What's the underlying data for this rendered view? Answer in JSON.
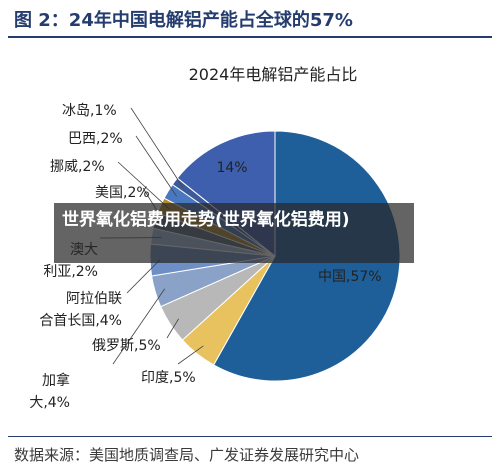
{
  "figure": {
    "title": "图 2：24年中国电解铝产能占全球的57%",
    "source": "数据来源：美国地质调查局、广发证券发展研究中心"
  },
  "overlay": {
    "text": "世界氧化铝费用走势(世界氧化铝费用)"
  },
  "chart_data": {
    "type": "pie",
    "title": "2024年电解铝产能占比",
    "slices": [
      {
        "label": "中国,57%",
        "value": 57,
        "color": "#1f5f99"
      },
      {
        "label": "印度,5%",
        "value": 5,
        "color": "#e8c25e"
      },
      {
        "label": "俄罗斯,5%",
        "value": 5,
        "color": "#b8b8b8"
      },
      {
        "label": "加拿大,4%",
        "value": 4,
        "color": "#8aa2c8"
      },
      {
        "label": "阿拉伯联合首长国,4%",
        "value": 4,
        "color": "#6e8fc6"
      },
      {
        "label": "澳大利亚,2%",
        "value": 2,
        "color": "#a8bfe0"
      },
      {
        "label": "美国,2%",
        "value": 2,
        "color": "#5a6b86"
      },
      {
        "label": "挪威,2%",
        "value": 2,
        "color": "#b58a2e"
      },
      {
        "label": "巴西,2%",
        "value": 2,
        "color": "#4a78c0"
      },
      {
        "label": "冰岛,1%",
        "value": 1,
        "color": "#3a5a9a"
      },
      {
        "label": "14%",
        "value": 14,
        "color": "#3d5fae"
      }
    ]
  }
}
